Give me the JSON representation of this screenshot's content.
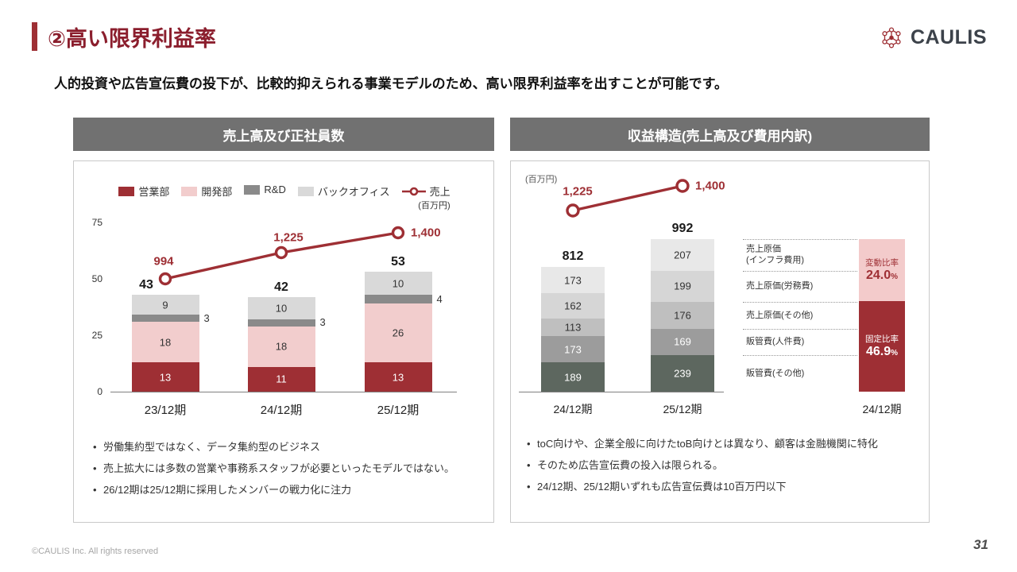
{
  "page": {
    "title": "②高い限界利益率",
    "subtitle": "人的投資や広告宣伝費の投下が、比較的抑えられる事業モデルのため、高い限界利益率を出すことが可能です。",
    "logo_text": "CAULIS",
    "footer": "©CAULIS Inc. All rights reserved",
    "page_number": "31"
  },
  "colors": {
    "accent_red": "#9e2f34",
    "title_red": "#8b1e2d",
    "panel_header_bg": "#717171",
    "pink": "#f3cbcb"
  },
  "chart_data": [
    {
      "type": "bar",
      "title": "売上高及び正社員数",
      "stacked": true,
      "categories": [
        "23/12期",
        "24/12期",
        "25/12期"
      ],
      "y_ticks": [
        0,
        25,
        50,
        75
      ],
      "ylim": [
        0,
        75
      ],
      "series": [
        {
          "key": "sales-dept",
          "name": "営業部",
          "values": [
            13,
            11,
            13
          ],
          "color": "#9e2f34",
          "label_color": "#ffffff"
        },
        {
          "key": "dev-dept",
          "name": "開発部",
          "values": [
            18,
            18,
            26
          ],
          "color": "#f2cdcd",
          "label_color": "#333333"
        },
        {
          "key": "rnd",
          "name": "R&D",
          "values": [
            3,
            3,
            4
          ],
          "color": "#8a8a8a",
          "label_color": "#333333",
          "external_label": true
        },
        {
          "key": "back-office",
          "name": "バックオフィス",
          "values": [
            9,
            10,
            10
          ],
          "color": "#d9d9d9",
          "label_color": "#333333"
        }
      ],
      "totals": [
        43,
        42,
        53
      ],
      "line_series": {
        "name": "売上",
        "unit": "(百万円)",
        "values": [
          994,
          1225,
          1400
        ],
        "labels": [
          "994",
          "1,225",
          "1,400"
        ],
        "color": "#9e2f34"
      },
      "bullets": [
        "労働集約型ではなく、データ集約型のビジネス",
        "売上拡大には多数の営業や事務系スタッフが必要といったモデルではない。",
        "26/12期は25/12期に採用したメンバーの戦力化に注力"
      ]
    },
    {
      "type": "bar",
      "title": "収益構造(売上高及び費用内訳)",
      "stacked": true,
      "unit_label": "(百万円)",
      "categories": [
        "24/12期",
        "25/12期"
      ],
      "segments_top_down": [
        {
          "name": "売上原価(インフラ費用)",
          "label_lines": [
            "売上原価",
            "(インフラ費用)"
          ],
          "values": [
            173,
            207
          ],
          "color": "#e8e8e8",
          "label_color": "#333333"
        },
        {
          "name": "売上原価(労務費)",
          "label_lines": [
            "売上原価(労務費)"
          ],
          "values": [
            162,
            199
          ],
          "color": "#d6d6d6",
          "label_color": "#333333"
        },
        {
          "name": "売上原価(その他)",
          "label_lines": [
            "売上原価(その他)"
          ],
          "values": [
            113,
            176
          ],
          "color": "#bfbfbf",
          "label_color": "#333333"
        },
        {
          "name": "販管費(人件費)",
          "label_lines": [
            "販管費(人件費)"
          ],
          "values": [
            173,
            169
          ],
          "color": "#9c9c9c",
          "label_color": "#ffffff"
        },
        {
          "name": "販管費(その他)",
          "label_lines": [
            "販管費(その他)"
          ],
          "values": [
            189,
            239
          ],
          "color": "#5d675f",
          "label_color": "#ffffff"
        }
      ],
      "totals": [
        812,
        992
      ],
      "line_series": {
        "name": "売上",
        "values": [
          1225,
          1400
        ],
        "labels": [
          "1,225",
          "1,400"
        ],
        "color": "#9e2f34"
      },
      "ratio_bar": {
        "category": "24/12期",
        "variable": {
          "label": "変動比率",
          "value": "24.0",
          "unit": "%",
          "color": "#f3cbcb"
        },
        "fixed": {
          "label": "固定比率",
          "value": "46.9",
          "unit": "%",
          "color": "#9e2f34"
        }
      },
      "bullets": [
        "toC向けや、企業全般に向けたtoB向けとは異なり、顧客は金融機関に特化",
        "そのため広告宣伝費の投入は限られる。",
        "24/12期、25/12期いずれも広告宣伝費は10百万円以下"
      ]
    }
  ]
}
